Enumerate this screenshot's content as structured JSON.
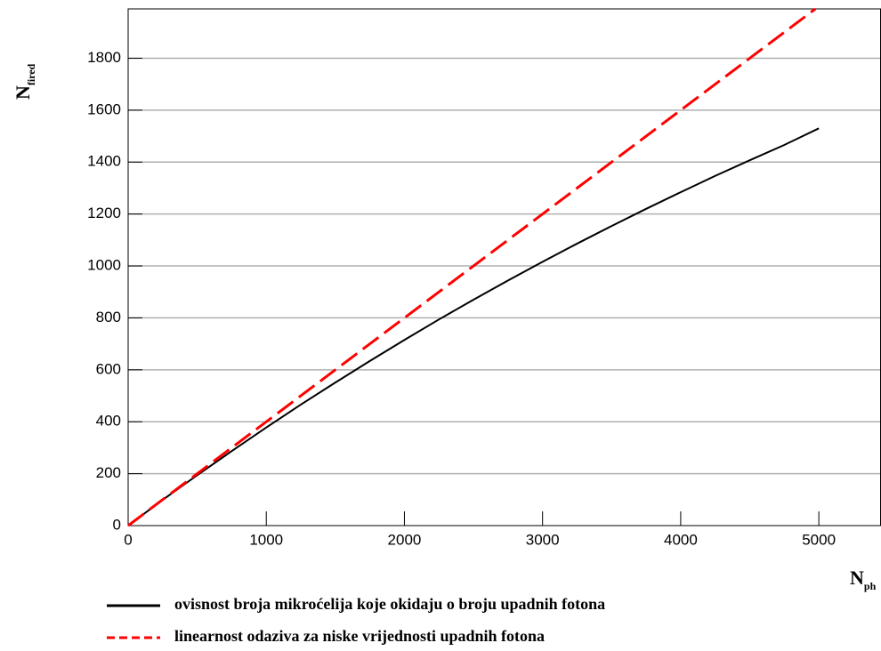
{
  "chart_data": {
    "type": "line",
    "x_label": {
      "text": "N",
      "subscript": "ph"
    },
    "y_label": {
      "text": "N",
      "subscript": "fired"
    },
    "series": [
      {
        "name": "ovisnost broja mikroćelija koje okidaju o broju upadnih fotona",
        "color": "#000000",
        "dash": "solid",
        "x": [
          0,
          250,
          500,
          750,
          1000,
          1250,
          1500,
          1750,
          2000,
          2250,
          2500,
          2750,
          3000,
          3250,
          3500,
          3750,
          4000,
          4250,
          4500,
          4750,
          5000
        ],
        "values": [
          0,
          99,
          194,
          287,
          378,
          466,
          551,
          634,
          715,
          794,
          870,
          944,
          1016,
          1086,
          1154,
          1220,
          1284,
          1347,
          1407,
          1466,
          1530
        ]
      },
      {
        "name": "linearnost odaziva za niske vrijednosti upadnih fotona",
        "color": "#ff0000",
        "dash": "dashed",
        "x": [
          0,
          4975
        ],
        "values": [
          0,
          1990
        ]
      }
    ],
    "xlim": [
      0,
      5450
    ],
    "xticks": [
      0,
      1000,
      2000,
      3000,
      4000,
      5000
    ],
    "ylim": [
      0,
      1990
    ],
    "yticks": [
      0,
      200,
      400,
      600,
      800,
      1000,
      1200,
      1400,
      1600,
      1800
    ],
    "grid": true,
    "legend": "bottom"
  }
}
